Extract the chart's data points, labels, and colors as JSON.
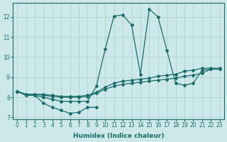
{
  "xlabel": "Humidex (Indice chaleur)",
  "background_color": "#cce8e8",
  "grid_color": "#aacece",
  "line_color": "#1a6b6b",
  "xlim": [
    -0.5,
    23.5
  ],
  "ylim": [
    6.9,
    12.7
  ],
  "yticks": [
    7,
    8,
    9,
    10,
    11,
    12
  ],
  "xticks": [
    0,
    1,
    2,
    3,
    4,
    5,
    6,
    7,
    8,
    9,
    10,
    11,
    12,
    13,
    14,
    15,
    16,
    17,
    18,
    19,
    20,
    21,
    22,
    23
  ],
  "line_main_x": [
    0,
    1,
    2,
    3,
    4,
    5,
    6,
    7,
    8,
    9,
    10,
    11,
    12,
    13,
    14,
    15,
    16,
    17,
    18,
    19,
    20,
    21,
    22,
    23
  ],
  "line_main_y": [
    8.3,
    8.1,
    8.1,
    8.0,
    7.9,
    7.8,
    7.8,
    7.8,
    7.8,
    8.55,
    10.4,
    12.05,
    12.1,
    11.6,
    9.15,
    12.4,
    12.0,
    10.35,
    8.7,
    8.6,
    8.7,
    9.35,
    9.4,
    9.4
  ],
  "line_low_x": [
    0,
    1,
    2,
    3,
    4,
    5,
    6,
    7,
    8,
    9
  ],
  "line_low_y": [
    8.3,
    8.1,
    8.1,
    7.7,
    7.5,
    7.35,
    7.2,
    7.25,
    7.5,
    7.5
  ],
  "line_rise1_x": [
    0,
    1,
    2,
    3,
    4,
    5,
    6,
    7,
    8,
    9,
    10,
    11,
    12,
    13,
    14,
    15,
    16,
    17,
    18,
    19,
    20,
    21,
    22,
    23
  ],
  "line_rise1_y": [
    8.3,
    8.15,
    8.15,
    8.1,
    8.05,
    8.0,
    8.0,
    8.0,
    8.05,
    8.2,
    8.4,
    8.55,
    8.65,
    8.7,
    8.75,
    8.8,
    8.85,
    8.9,
    8.95,
    9.05,
    9.1,
    9.2,
    9.4,
    9.4
  ],
  "line_rise2_x": [
    0,
    1,
    2,
    3,
    4,
    5,
    6,
    7,
    8,
    9,
    10,
    11,
    12,
    13,
    14,
    15,
    16,
    17,
    18,
    19,
    20,
    21,
    22,
    23
  ],
  "line_rise2_y": [
    8.3,
    8.15,
    8.15,
    8.15,
    8.1,
    8.05,
    8.05,
    8.05,
    8.1,
    8.25,
    8.5,
    8.7,
    8.8,
    8.85,
    8.9,
    8.95,
    9.05,
    9.1,
    9.15,
    9.3,
    9.35,
    9.45,
    9.45,
    9.45
  ]
}
